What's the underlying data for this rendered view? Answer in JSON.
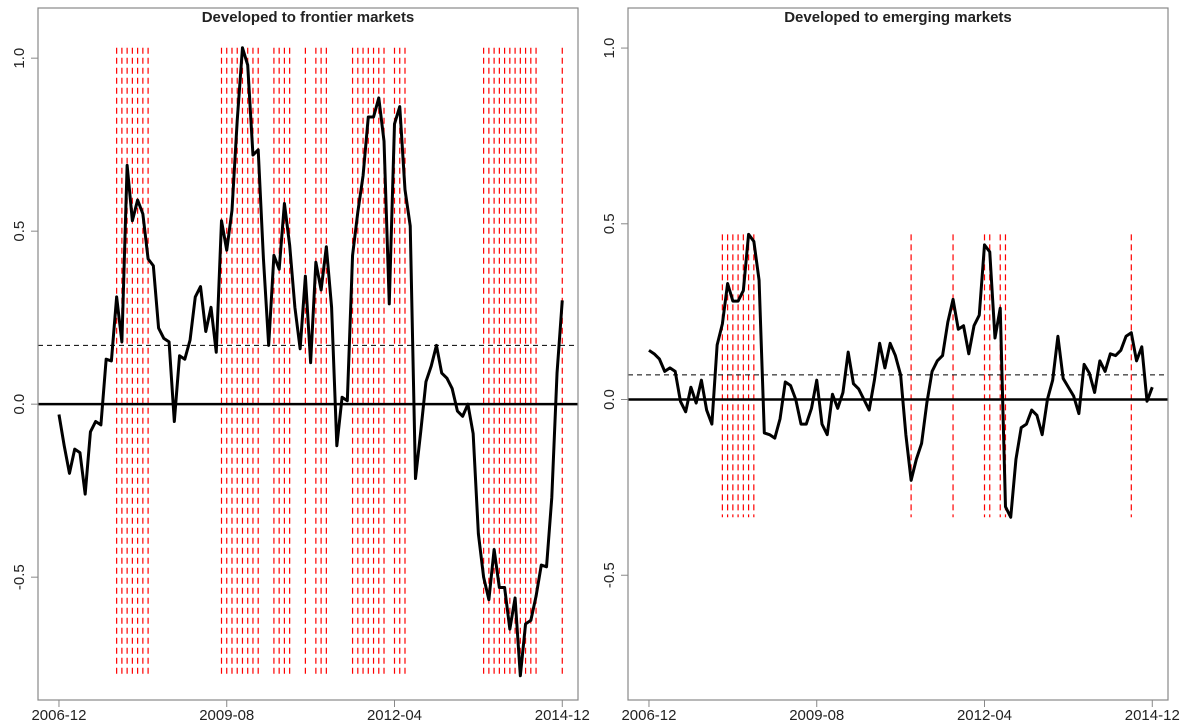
{
  "chart_data": [
    {
      "type": "line",
      "title": "Developed to frontier markets",
      "x": [
        "2006-12",
        "2007-01",
        "2007-02",
        "2007-03",
        "2007-04",
        "2007-05",
        "2007-06",
        "2007-07",
        "2007-08",
        "2007-09",
        "2007-10",
        "2007-11",
        "2007-12",
        "2008-01",
        "2008-02",
        "2008-03",
        "2008-04",
        "2008-05",
        "2008-06",
        "2008-07",
        "2008-08",
        "2008-09",
        "2008-10",
        "2008-11",
        "2008-12",
        "2009-01",
        "2009-02",
        "2009-03",
        "2009-04",
        "2009-05",
        "2009-06",
        "2009-07",
        "2009-08",
        "2009-09",
        "2009-10",
        "2009-11",
        "2009-12",
        "2010-01",
        "2010-02",
        "2010-03",
        "2010-04",
        "2010-05",
        "2010-06",
        "2010-07",
        "2010-08",
        "2010-09",
        "2010-10",
        "2010-11",
        "2010-12",
        "2011-01",
        "2011-02",
        "2011-03",
        "2011-04",
        "2011-05",
        "2011-06",
        "2011-07",
        "2011-08",
        "2011-09",
        "2011-10",
        "2011-11",
        "2011-12",
        "2012-01",
        "2012-02",
        "2012-03",
        "2012-04",
        "2012-05",
        "2012-06",
        "2012-07",
        "2012-08",
        "2012-09",
        "2012-10",
        "2012-11",
        "2012-12",
        "2013-01",
        "2013-02",
        "2013-03",
        "2013-04",
        "2013-05",
        "2013-06",
        "2013-07",
        "2013-08",
        "2013-09",
        "2013-10",
        "2013-11",
        "2013-12",
        "2014-01",
        "2014-02",
        "2014-03",
        "2014-04",
        "2014-05",
        "2014-06",
        "2014-07",
        "2014-08",
        "2014-09",
        "2014-10",
        "2014-11",
        "2014-12"
      ],
      "values": [
        -0.03,
        -0.12,
        -0.2,
        -0.13,
        -0.14,
        -0.26,
        -0.08,
        -0.05,
        -0.06,
        0.13,
        0.125,
        0.31,
        0.18,
        0.69,
        0.53,
        0.59,
        0.55,
        0.42,
        0.4,
        0.22,
        0.19,
        0.18,
        -0.05,
        0.14,
        0.13,
        0.185,
        0.31,
        0.34,
        0.21,
        0.28,
        0.15,
        0.53,
        0.445,
        0.56,
        0.82,
        1.03,
        0.98,
        0.72,
        0.735,
        0.42,
        0.17,
        0.43,
        0.39,
        0.58,
        0.46,
        0.28,
        0.16,
        0.37,
        0.12,
        0.41,
        0.33,
        0.455,
        0.28,
        -0.12,
        0.02,
        0.01,
        0.43,
        0.555,
        0.66,
        0.83,
        0.83,
        0.885,
        0.76,
        0.29,
        0.81,
        0.86,
        0.62,
        0.515,
        -0.215,
        -0.08,
        0.065,
        0.11,
        0.17,
        0.09,
        0.075,
        0.045,
        -0.02,
        -0.035,
        0.0,
        -0.085,
        -0.375,
        -0.5,
        -0.565,
        -0.42,
        -0.53,
        -0.53,
        -0.65,
        -0.56,
        -0.785,
        -0.635,
        -0.625,
        -0.555,
        -0.465,
        -0.47,
        -0.27,
        0.09,
        0.3
      ],
      "color": "#000000",
      "mean_line": 0.17,
      "zero_line": 0,
      "event_lines": [
        "2007-11",
        "2007-12",
        "2008-01",
        "2008-02",
        "2008-03",
        "2008-04",
        "2008-05",
        "2009-07",
        "2009-08",
        "2009-09",
        "2009-10",
        "2009-11",
        "2009-12",
        "2010-01",
        "2010-02",
        "2010-05",
        "2010-06",
        "2010-07",
        "2010-08",
        "2010-11",
        "2011-01",
        "2011-02",
        "2011-03",
        "2011-08",
        "2011-09",
        "2011-10",
        "2011-11",
        "2011-12",
        "2012-01",
        "2012-02",
        "2012-04",
        "2012-05",
        "2012-06",
        "2013-09",
        "2013-10",
        "2013-11",
        "2013-12",
        "2014-01",
        "2014-02",
        "2014-03",
        "2014-04",
        "2014-05",
        "2014-06",
        "2014-07",
        "2014-12"
      ],
      "event_color": "#ff0000",
      "xlim": [
        "2006-08",
        "2015-03"
      ],
      "xticks": [
        "2006-12",
        "2009-08",
        "2012-04",
        "2014-12"
      ],
      "ylim": [
        -0.855,
        1.145
      ],
      "yticks": [
        -0.5,
        {
          "value": 0,
          "label": "0.0"
        },
        0.5,
        {
          "value": 1,
          "label": "1.0"
        }
      ]
    },
    {
      "type": "line",
      "title": "Developed to emerging markets",
      "x": [
        "2006-12",
        "2007-01",
        "2007-02",
        "2007-03",
        "2007-04",
        "2007-05",
        "2007-06",
        "2007-07",
        "2007-08",
        "2007-09",
        "2007-10",
        "2007-11",
        "2007-12",
        "2008-01",
        "2008-02",
        "2008-03",
        "2008-04",
        "2008-05",
        "2008-06",
        "2008-07",
        "2008-08",
        "2008-09",
        "2008-10",
        "2008-11",
        "2008-12",
        "2009-01",
        "2009-02",
        "2009-03",
        "2009-04",
        "2009-05",
        "2009-06",
        "2009-07",
        "2009-08",
        "2009-09",
        "2009-10",
        "2009-11",
        "2009-12",
        "2010-01",
        "2010-02",
        "2010-03",
        "2010-04",
        "2010-05",
        "2010-06",
        "2010-07",
        "2010-08",
        "2010-09",
        "2010-10",
        "2010-11",
        "2010-12",
        "2011-01",
        "2011-02",
        "2011-03",
        "2011-04",
        "2011-05",
        "2011-06",
        "2011-07",
        "2011-08",
        "2011-09",
        "2011-10",
        "2011-11",
        "2011-12",
        "2012-01",
        "2012-02",
        "2012-03",
        "2012-04",
        "2012-05",
        "2012-06",
        "2012-07",
        "2012-08",
        "2012-09",
        "2012-10",
        "2012-11",
        "2012-12",
        "2013-01",
        "2013-02",
        "2013-03",
        "2013-04",
        "2013-05",
        "2013-06",
        "2013-07",
        "2013-08",
        "2013-09",
        "2013-10",
        "2013-11",
        "2013-12",
        "2014-01",
        "2014-02",
        "2014-03",
        "2014-04",
        "2014-05",
        "2014-06",
        "2014-07",
        "2014-08",
        "2014-09",
        "2014-10",
        "2014-11",
        "2014-12"
      ],
      "values": [
        0.14,
        0.13,
        0.115,
        0.08,
        0.09,
        0.08,
        -0.005,
        -0.035,
        0.035,
        -0.01,
        0.055,
        -0.03,
        -0.07,
        0.155,
        0.215,
        0.33,
        0.28,
        0.28,
        0.31,
        0.47,
        0.45,
        0.34,
        -0.095,
        -0.1,
        -0.11,
        -0.055,
        0.05,
        0.04,
        0.0,
        -0.07,
        -0.07,
        -0.025,
        0.055,
        -0.07,
        -0.1,
        0.015,
        -0.025,
        0.02,
        0.135,
        0.045,
        0.03,
        0.0,
        -0.03,
        0.055,
        0.16,
        0.09,
        0.16,
        0.125,
        0.07,
        -0.1,
        -0.23,
        -0.17,
        -0.125,
        -0.01,
        0.08,
        0.11,
        0.125,
        0.22,
        0.285,
        0.2,
        0.21,
        0.13,
        0.21,
        0.24,
        0.44,
        0.42,
        0.175,
        0.26,
        -0.305,
        -0.335,
        -0.17,
        -0.08,
        -0.07,
        -0.03,
        -0.045,
        -0.1,
        0.0,
        0.055,
        0.18,
        0.06,
        0.035,
        0.01,
        -0.04,
        0.1,
        0.075,
        0.02,
        0.11,
        0.08,
        0.13,
        0.125,
        0.14,
        0.18,
        0.19,
        0.11,
        0.15,
        -0.005,
        0.035
      ],
      "color": "#000000",
      "mean_line": 0.07,
      "zero_line": 0,
      "event_lines": [
        "2008-02",
        "2008-03",
        "2008-04",
        "2008-05",
        "2008-06",
        "2008-07",
        "2008-08",
        "2011-02",
        "2011-10",
        "2012-04",
        "2012-05",
        "2012-07",
        "2012-08",
        "2014-08"
      ],
      "event_color": "#ff0000",
      "xlim": [
        "2006-08",
        "2015-03"
      ],
      "xticks": [
        "2006-12",
        "2009-08",
        "2012-04",
        "2014-12"
      ],
      "ylim": [
        -0.855,
        1.114
      ],
      "yticks": [
        -0.5,
        {
          "value": 0,
          "label": "0.0"
        },
        0.5,
        {
          "value": 1,
          "label": "1.0"
        }
      ]
    }
  ]
}
